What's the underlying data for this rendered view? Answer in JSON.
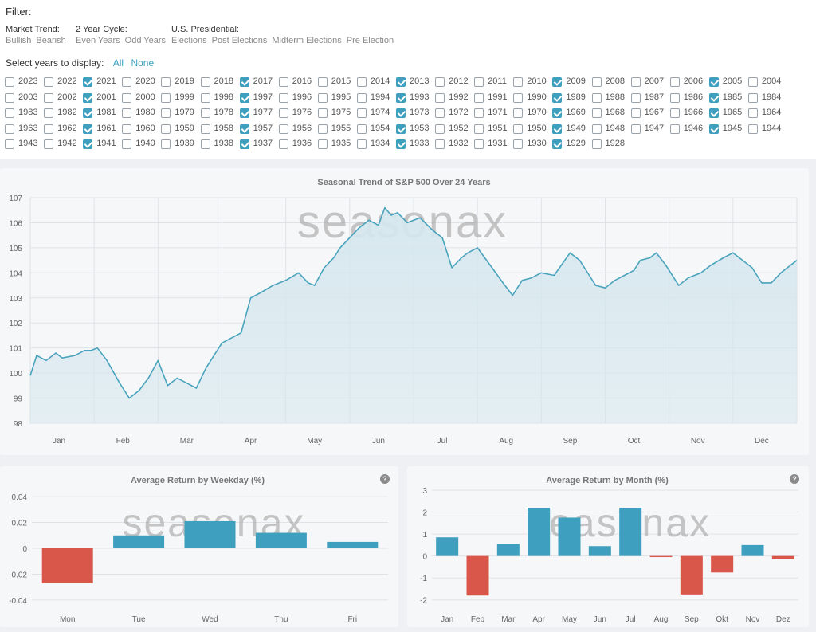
{
  "filter": {
    "title": "Filter:",
    "groups": [
      {
        "label": "Market Trend:",
        "options": [
          "Bullish",
          "Bearish"
        ]
      },
      {
        "label": "2 Year Cycle:",
        "options": [
          "Even Years",
          "Odd Years"
        ]
      },
      {
        "label": "U.S. Presidential:",
        "options": [
          "Elections",
          "Post Elections",
          "Midterm Elections",
          "Pre Election"
        ]
      }
    ],
    "years_label": "Select years to display:",
    "all_label": "All",
    "none_label": "None"
  },
  "years": [
    [
      "2023",
      "2022",
      "2021",
      "2020",
      "2019",
      "2018",
      "2017",
      "2016",
      "2015",
      "2014",
      "2013",
      "2012",
      "2011",
      "2010",
      "2009",
      "2008",
      "2007",
      "2006",
      "2005",
      "2004"
    ],
    [
      "2003",
      "2002",
      "2001",
      "2000",
      "1999",
      "1998",
      "1997",
      "1996",
      "1995",
      "1994",
      "1993",
      "1992",
      "1991",
      "1990",
      "1989",
      "1988",
      "1987",
      "1986",
      "1985",
      "1984"
    ],
    [
      "1983",
      "1982",
      "1981",
      "1980",
      "1979",
      "1978",
      "1977",
      "1976",
      "1975",
      "1974",
      "1973",
      "1972",
      "1971",
      "1970",
      "1969",
      "1968",
      "1967",
      "1966",
      "1965",
      "1964"
    ],
    [
      "1963",
      "1962",
      "1961",
      "1960",
      "1959",
      "1958",
      "1957",
      "1956",
      "1955",
      "1954",
      "1953",
      "1952",
      "1951",
      "1950",
      "1949",
      "1948",
      "1947",
      "1946",
      "1945",
      "1944"
    ],
    [
      "1943",
      "1942",
      "1941",
      "1940",
      "1939",
      "1938",
      "1937",
      "1936",
      "1935",
      "1934",
      "1933",
      "1932",
      "1931",
      "1930",
      "1929",
      "1928"
    ]
  ],
  "selected_years": [
    "2021",
    "2017",
    "2013",
    "2009",
    "2005",
    "2001",
    "1997",
    "1993",
    "1989",
    "1985",
    "1981",
    "1977",
    "1973",
    "1969",
    "1965",
    "1961",
    "1957",
    "1953",
    "1949",
    "1945",
    "1941",
    "1937",
    "1933",
    "1929"
  ],
  "watermark": "seasonax",
  "colors": {
    "accent": "#3f9fbe",
    "line": "#4aa3bd",
    "area": "#d5e7ee",
    "negative": "#d9574a",
    "grid": "#dfe3e7"
  },
  "chart_data": [
    {
      "type": "area",
      "title": "Seasonal Trend of S&P 500 Over 24 Years",
      "categories": [
        "Jan",
        "Feb",
        "Mar",
        "Apr",
        "May",
        "Jun",
        "Jul",
        "Aug",
        "Sep",
        "Oct",
        "Nov",
        "Dec"
      ],
      "ylim": [
        98,
        107
      ],
      "yticks": [
        98,
        99,
        100,
        101,
        102,
        103,
        104,
        105,
        106,
        107
      ],
      "x": [
        0,
        0.1,
        0.25,
        0.4,
        0.5,
        0.7,
        0.85,
        0.95,
        1.05,
        1.2,
        1.4,
        1.55,
        1.7,
        1.85,
        2.0,
        2.15,
        2.3,
        2.45,
        2.6,
        2.75,
        2.9,
        3.0,
        3.15,
        3.3,
        3.45,
        3.6,
        3.8,
        4.0,
        4.2,
        4.35,
        4.45,
        4.6,
        4.75,
        4.85,
        5.0,
        5.15,
        5.3,
        5.45,
        5.55,
        5.65,
        5.75,
        5.9,
        6.1,
        6.3,
        6.45,
        6.6,
        6.75,
        6.85,
        7.0,
        7.2,
        7.4,
        7.55,
        7.7,
        7.85,
        8.0,
        8.2,
        8.45,
        8.6,
        8.75,
        8.85,
        9.0,
        9.15,
        9.3,
        9.45,
        9.55,
        9.7,
        9.8,
        9.95,
        10.15,
        10.3,
        10.5,
        10.65,
        10.85,
        11.0,
        11.15,
        11.3,
        11.45,
        11.6,
        11.75,
        11.85,
        12.0
      ],
      "values": [
        99.9,
        100.7,
        100.5,
        100.8,
        100.6,
        100.7,
        100.9,
        100.9,
        101.0,
        100.5,
        99.6,
        99.0,
        99.3,
        99.8,
        100.5,
        99.5,
        99.8,
        99.6,
        99.4,
        100.2,
        100.8,
        101.2,
        101.4,
        101.6,
        103.0,
        103.2,
        103.5,
        103.7,
        104.0,
        103.6,
        103.5,
        104.2,
        104.6,
        105.0,
        105.4,
        105.8,
        106.1,
        105.9,
        106.6,
        106.3,
        106.4,
        106.0,
        106.2,
        105.7,
        105.4,
        104.2,
        104.6,
        104.8,
        105.0,
        104.3,
        103.6,
        103.1,
        103.7,
        103.8,
        104.0,
        103.9,
        104.8,
        104.5,
        103.9,
        103.5,
        103.4,
        103.7,
        103.9,
        104.1,
        104.5,
        104.6,
        104.8,
        104.3,
        103.5,
        103.8,
        104.0,
        104.3,
        104.6,
        104.8,
        104.5,
        104.2,
        103.6,
        103.6,
        104.0,
        104.2,
        104.5
      ]
    },
    {
      "type": "bar",
      "title": "Average Return by Weekday (%)",
      "categories": [
        "Mon",
        "Tue",
        "Wed",
        "Thu",
        "Fri"
      ],
      "values": [
        -0.027,
        0.01,
        0.021,
        0.012,
        0.005
      ],
      "ylim": [
        -0.045,
        0.045
      ],
      "yticks": [
        -0.04,
        -0.02,
        0,
        0.02,
        0.04
      ],
      "ytick_labels": [
        "-0.04",
        "-0.02",
        "0",
        "0.02",
        "0.04"
      ]
    },
    {
      "type": "bar",
      "title": "Average Return by Month (%)",
      "categories": [
        "Jan",
        "Feb",
        "Mar",
        "Apr",
        "May",
        "Jun",
        "Jul",
        "Aug",
        "Sep",
        "Okt",
        "Nov",
        "Dez"
      ],
      "values": [
        0.85,
        -1.8,
        0.55,
        2.2,
        1.75,
        0.45,
        2.2,
        -0.05,
        -1.75,
        -0.75,
        0.5,
        -0.15
      ],
      "ylim": [
        -2.3,
        3.0
      ],
      "yticks": [
        -2,
        -1,
        0,
        1,
        2,
        3
      ],
      "ytick_labels": [
        "-2",
        "-1",
        "0",
        "1",
        "2",
        "3"
      ]
    }
  ]
}
